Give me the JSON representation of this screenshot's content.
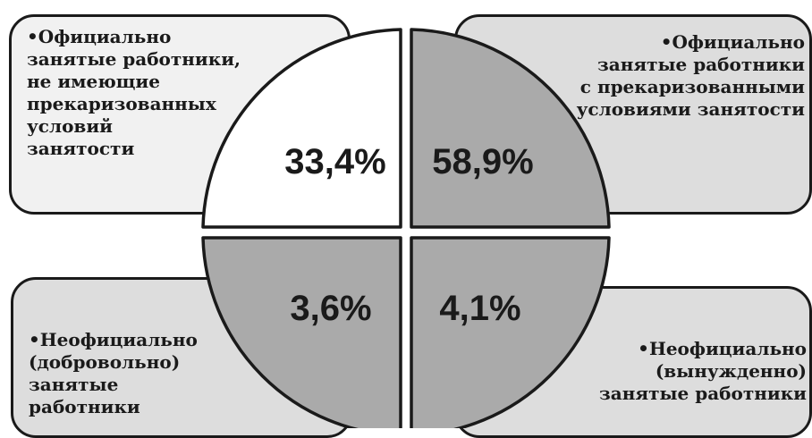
{
  "diagram": {
    "segments": [
      {
        "id": "tl",
        "value": 33.4,
        "percent_label": "33,4%",
        "fill": "#ffffff",
        "card_fill": "#f1f1f1",
        "label_lines": [
          "•Официально",
          "занятые работники,",
          "не имеющие",
          "прекаризованных",
          "условий",
          "занятости"
        ]
      },
      {
        "id": "tr",
        "value": 58.9,
        "percent_label": "58,9%",
        "fill": "#aaaaaa",
        "card_fill": "#dddddd",
        "label_lines": [
          "•Официально",
          "занятые работники",
          "с прекаризованными",
          "условиями занятости"
        ]
      },
      {
        "id": "bl",
        "value": 3.6,
        "percent_label": "3,6%",
        "fill": "#aaaaaa",
        "card_fill": "#dddddd",
        "label_lines": [
          "•Неофициально",
          "(добровольно)",
          "занятые",
          "работники"
        ]
      },
      {
        "id": "br",
        "value": 4.1,
        "percent_label": "4,1%",
        "fill": "#aaaaaa",
        "card_fill": "#dddddd",
        "label_lines": [
          "•Неофициально",
          "(вынужденно)",
          "занятые работники"
        ]
      }
    ]
  }
}
